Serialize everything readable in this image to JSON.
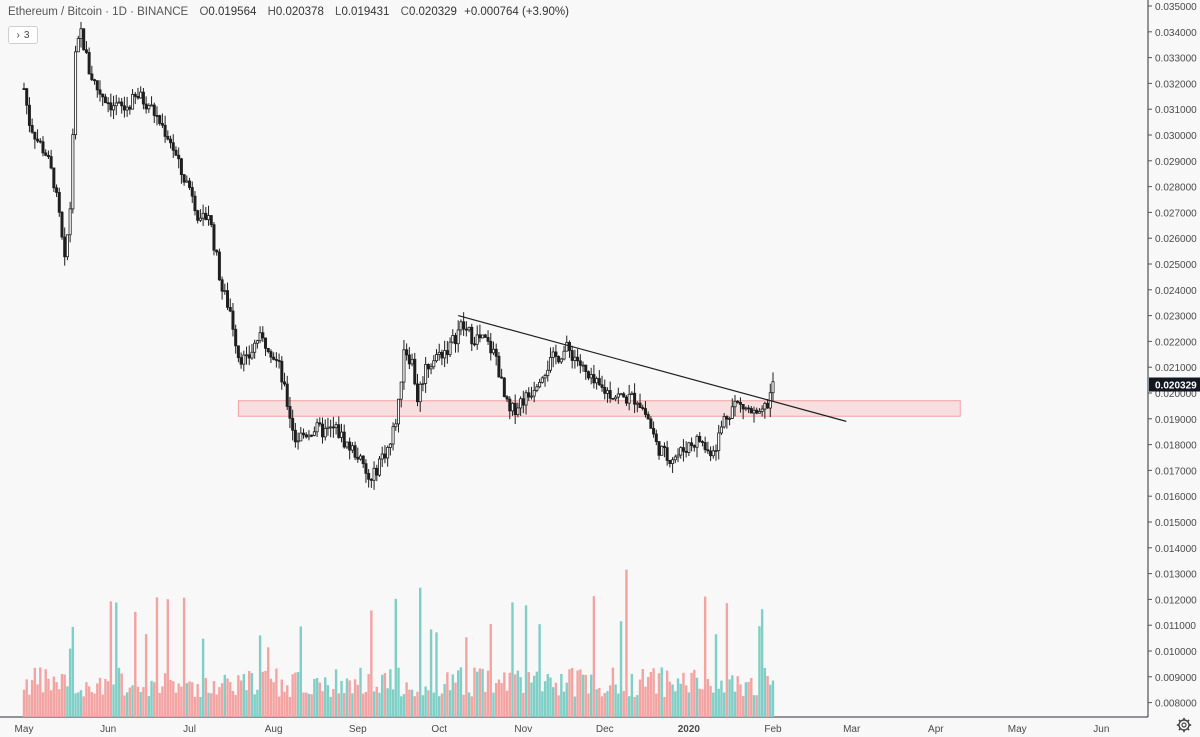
{
  "header": {
    "symbol": "Ethereum / Bitcoin · 1D · BINANCE",
    "open_label": "O",
    "open": "0.019564",
    "high_label": "H",
    "high": "0.020378",
    "low_label": "L",
    "low": "0.019431",
    "close_label": "C",
    "close": "0.020329",
    "change": "+0.000764 (+3.90%)"
  },
  "indicator_toggle": {
    "chevron": "›",
    "count": "3"
  },
  "colors": {
    "up": "#26a69a",
    "down": "#ef5350",
    "candle": "#1f1f1f",
    "last_price_bg": "#131722",
    "zone": "rgba(239,83,80,0.15)",
    "zone_border": "#f2a0a0"
  },
  "chart_data": {
    "type": "candlestick",
    "price_axis": [
      "0.035000",
      "0.034000",
      "0.033000",
      "0.032000",
      "0.031000",
      "0.030000",
      "0.029000",
      "0.028000",
      "0.027000",
      "0.026000",
      "0.025000",
      "0.024000",
      "0.023000",
      "0.022000",
      "0.021000",
      "0.020000",
      "0.019000",
      "0.018000",
      "0.017000",
      "0.016000",
      "0.015000",
      "0.014000",
      "0.013000",
      "0.012000",
      "0.011000",
      "0.010000",
      "0.009000",
      "0.008000"
    ],
    "ylim": [
      0.008,
      0.035
    ],
    "last_price": "0.020329",
    "time_axis": [
      "May",
      "Jun",
      "Jul",
      "Aug",
      "Sep",
      "Oct",
      "Nov",
      "Dec",
      "2020",
      "Feb",
      "Mar",
      "Apr",
      "May",
      "Jun"
    ],
    "price_path": [
      [
        "2019-05-01",
        0.0318
      ],
      [
        "2019-05-03",
        0.0305
      ],
      [
        "2019-05-06",
        0.0298
      ],
      [
        "2019-05-09",
        0.0293
      ],
      [
        "2019-05-12",
        0.0282
      ],
      [
        "2019-05-14",
        0.0268
      ],
      [
        "2019-05-16",
        0.025
      ],
      [
        "2019-05-18",
        0.0272
      ],
      [
        "2019-05-20",
        0.033
      ],
      [
        "2019-05-22",
        0.034
      ],
      [
        "2019-05-25",
        0.0325
      ],
      [
        "2019-05-28",
        0.0318
      ],
      [
        "2019-06-02",
        0.0312
      ],
      [
        "2019-06-07",
        0.031
      ],
      [
        "2019-06-12",
        0.0315
      ],
      [
        "2019-06-16",
        0.0312
      ],
      [
        "2019-06-20",
        0.0305
      ],
      [
        "2019-06-24",
        0.0298
      ],
      [
        "2019-06-28",
        0.0285
      ],
      [
        "2019-07-02",
        0.0278
      ],
      [
        "2019-07-05",
        0.0265
      ],
      [
        "2019-07-08",
        0.027
      ],
      [
        "2019-07-10",
        0.0258
      ],
      [
        "2019-07-13",
        0.024
      ],
      [
        "2019-07-16",
        0.0232
      ],
      [
        "2019-07-19",
        0.0215
      ],
      [
        "2019-07-22",
        0.0212
      ],
      [
        "2019-07-26",
        0.0221
      ],
      [
        "2019-07-30",
        0.0219
      ],
      [
        "2019-08-03",
        0.021
      ],
      [
        "2019-08-06",
        0.0196
      ],
      [
        "2019-08-09",
        0.0182
      ],
      [
        "2019-08-12",
        0.0184
      ],
      [
        "2019-08-16",
        0.0186
      ],
      [
        "2019-08-20",
        0.0185
      ],
      [
        "2019-08-24",
        0.0186
      ],
      [
        "2019-08-28",
        0.018
      ],
      [
        "2019-09-01",
        0.0176
      ],
      [
        "2019-09-04",
        0.0168
      ],
      [
        "2019-09-06",
        0.0165
      ],
      [
        "2019-09-09",
        0.0174
      ],
      [
        "2019-09-13",
        0.018
      ],
      [
        "2019-09-16",
        0.0195
      ],
      [
        "2019-09-18",
        0.0218
      ],
      [
        "2019-09-21",
        0.0212
      ],
      [
        "2019-09-23",
        0.0198
      ],
      [
        "2019-09-26",
        0.021
      ],
      [
        "2019-10-01",
        0.0215
      ],
      [
        "2019-10-05",
        0.0218
      ],
      [
        "2019-10-09",
        0.0226
      ],
      [
        "2019-10-13",
        0.0222
      ],
      [
        "2019-10-18",
        0.022
      ],
      [
        "2019-10-22",
        0.0214
      ],
      [
        "2019-10-25",
        0.0198
      ],
      [
        "2019-10-27",
        0.0192
      ],
      [
        "2019-10-31",
        0.0197
      ],
      [
        "2019-11-03",
        0.0199
      ],
      [
        "2019-11-07",
        0.0207
      ],
      [
        "2019-11-12",
        0.0213
      ],
      [
        "2019-11-17",
        0.0217
      ],
      [
        "2019-11-21",
        0.0213
      ],
      [
        "2019-11-25",
        0.0205
      ],
      [
        "2019-11-29",
        0.0202
      ],
      [
        "2019-12-03",
        0.02
      ],
      [
        "2019-12-08",
        0.0198
      ],
      [
        "2019-12-13",
        0.0198
      ],
      [
        "2019-12-17",
        0.019
      ],
      [
        "2019-12-20",
        0.018
      ],
      [
        "2019-12-24",
        0.0175
      ],
      [
        "2019-12-28",
        0.0176
      ],
      [
        "2020-01-01",
        0.018
      ],
      [
        "2020-01-05",
        0.0182
      ],
      [
        "2020-01-08",
        0.0177
      ],
      [
        "2020-01-11",
        0.018
      ],
      [
        "2020-01-14",
        0.019
      ],
      [
        "2020-01-18",
        0.0196
      ],
      [
        "2020-01-22",
        0.0194
      ],
      [
        "2020-01-27",
        0.019
      ],
      [
        "2020-01-30",
        0.0196
      ],
      [
        "2020-02-01",
        0.0203
      ]
    ],
    "trendline": {
      "from": [
        "2019-10-08",
        0.023
      ],
      "to": [
        "2020-02-28",
        0.0189
      ]
    },
    "support_zone": {
      "from": "2019-07-19",
      "to": "2020-04-10",
      "price_low": 0.0191,
      "price_high": 0.0197
    },
    "volume": {
      "max_ratio_note": "relative",
      "series_colors": [
        "up",
        "down"
      ]
    }
  },
  "icons": {
    "settings": "gear-icon"
  }
}
